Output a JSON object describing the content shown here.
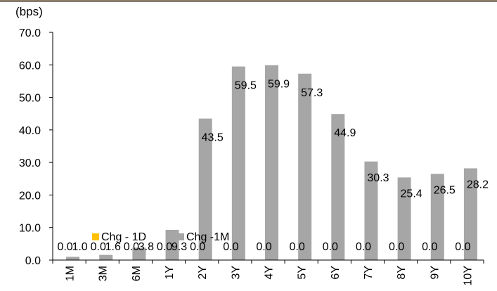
{
  "colors": {
    "top_rule": "#8B7D6B",
    "bar_1m": "#A6A6A6",
    "bar_1d": "#FFC000",
    "axis": "#000000"
  },
  "chart_data": {
    "type": "bar",
    "ylabel": "(bps)",
    "categories": [
      "1M",
      "3M",
      "6M",
      "1Y",
      "2Y",
      "3Y",
      "4Y",
      "5Y",
      "6Y",
      "7Y",
      "8Y",
      "9Y",
      "10Y"
    ],
    "ylim": [
      0,
      70
    ],
    "yticks": [
      "0.0",
      "10.0",
      "20.0",
      "30.0",
      "40.0",
      "50.0",
      "60.0",
      "70.0"
    ],
    "grid": false,
    "legend_position": "bottom-left inside plot",
    "series": [
      {
        "name": "Chg - 1D",
        "color": "#FFC000",
        "values": [
          0.0,
          0.0,
          0.0,
          0.0,
          0.0,
          0.0,
          0.0,
          0.0,
          0.0,
          0.0,
          0.0,
          0.0,
          0.0
        ],
        "labels": [
          "0.0",
          "0.0",
          "0.0",
          "0.0",
          "0.0",
          "0.0",
          "0.0",
          "0.0",
          "0.0",
          "0.0",
          "0.0",
          "0.0",
          "0.0"
        ]
      },
      {
        "name": "Chg -1M",
        "color": "#A6A6A6",
        "values": [
          1.0,
          1.6,
          3.8,
          9.3,
          43.5,
          59.5,
          59.9,
          57.3,
          44.9,
          30.3,
          25.4,
          26.5,
          28.2
        ],
        "labels": [
          "1.0",
          "1.6",
          "3.8",
          "9.3",
          "43.5",
          "59.5",
          "59.9",
          "57.3",
          "44.9",
          "30.3",
          "25.4",
          "26.5",
          "28.2"
        ]
      }
    ]
  }
}
